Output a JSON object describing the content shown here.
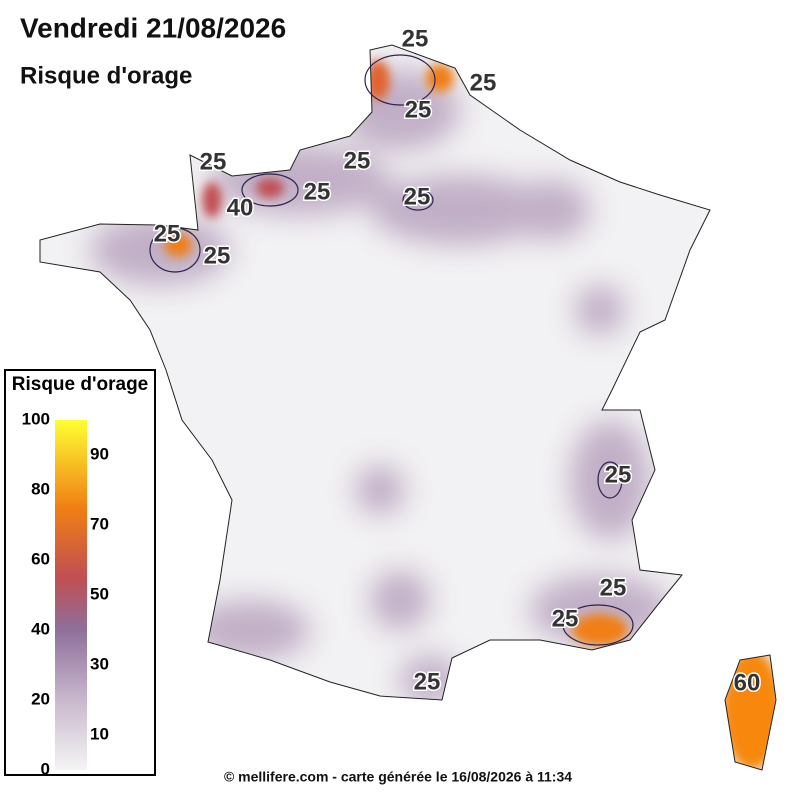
{
  "header": {
    "title": "Vendredi 21/08/2026",
    "subtitle": "Risque d'orage"
  },
  "legend": {
    "title": "Risque d'orage",
    "ticks_left": [
      0,
      20,
      40,
      60,
      80,
      100
    ],
    "ticks_right": [
      10,
      30,
      50,
      70,
      90
    ]
  },
  "contour_labels": [
    25,
    25,
    25,
    25,
    25,
    25,
    25,
    40,
    25,
    25,
    25,
    25,
    25,
    25,
    60
  ],
  "footer": "© mellifere.com - carte générée le 16/08/2026 à 11:34"
}
